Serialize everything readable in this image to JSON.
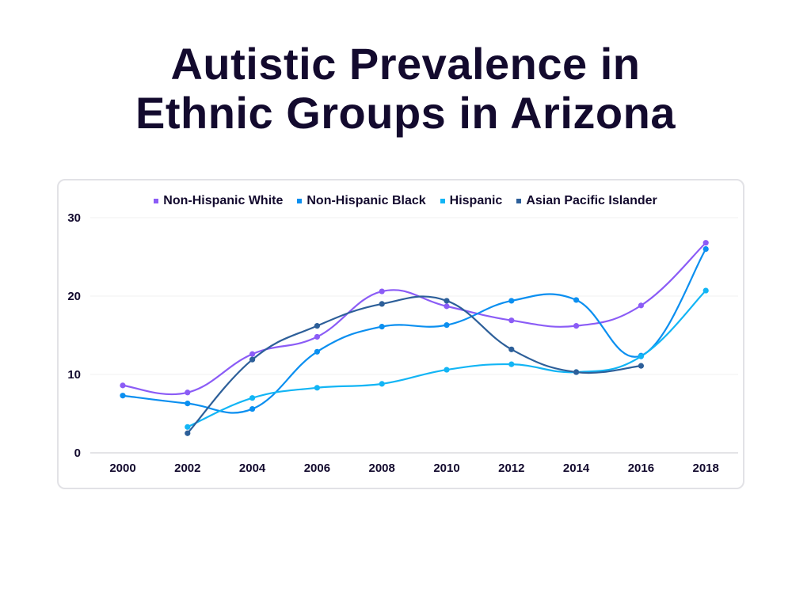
{
  "title_lines": [
    "Autistic Prevalence in",
    "Ethnic Groups in Arizona"
  ],
  "chart_data": {
    "type": "line",
    "title": "Autistic Prevalence in Ethnic Groups in Arizona",
    "xlabel": "",
    "ylabel": "",
    "x": [
      "2000",
      "2002",
      "2004",
      "2006",
      "2008",
      "2010",
      "2012",
      "2014",
      "2016",
      "2018"
    ],
    "ylim": [
      0,
      30
    ],
    "yticks": [
      0,
      10,
      20,
      30
    ],
    "grid": true,
    "legend_position": "top",
    "series": [
      {
        "name": "Non-Hispanic White",
        "color": "#8b5cf6",
        "values": [
          8.6,
          7.7,
          12.6,
          14.8,
          20.6,
          18.7,
          16.9,
          16.2,
          18.8,
          26.8
        ]
      },
      {
        "name": "Non-Hispanic Black",
        "color": "#0b8ff0",
        "values": [
          7.3,
          6.3,
          5.6,
          12.9,
          16.1,
          16.3,
          19.4,
          19.5,
          12.4,
          26.0
        ]
      },
      {
        "name": "Hispanic",
        "color": "#12b5f5",
        "values": [
          null,
          3.3,
          7.0,
          8.3,
          8.8,
          10.6,
          11.3,
          10.3,
          12.3,
          20.7
        ]
      },
      {
        "name": "Asian Pacific Islander",
        "color": "#2d5f99",
        "values": [
          null,
          2.5,
          11.9,
          16.2,
          19.0,
          19.4,
          13.2,
          10.3,
          11.1,
          null
        ]
      }
    ]
  }
}
